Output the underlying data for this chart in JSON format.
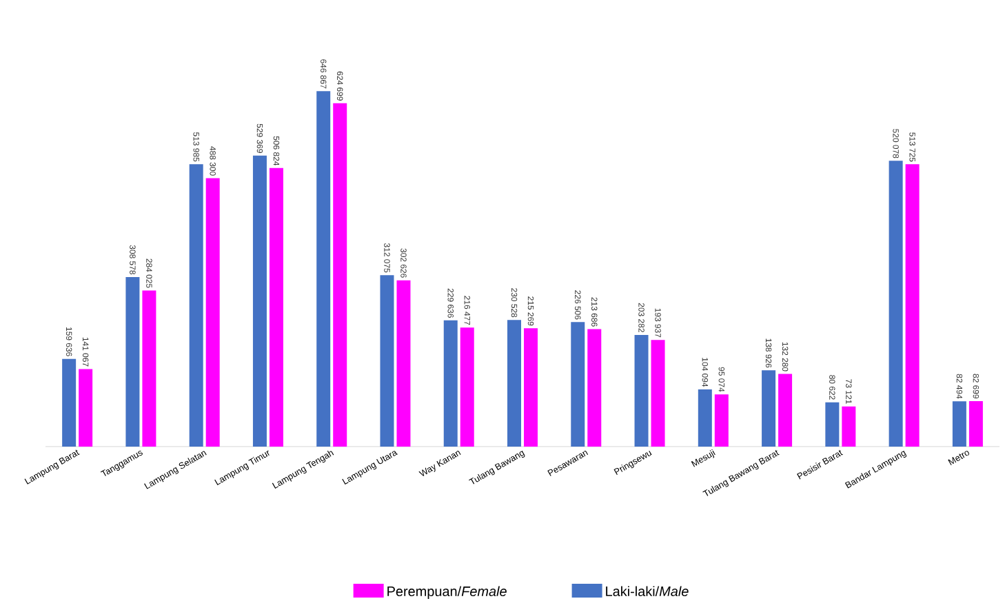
{
  "chart_data": {
    "type": "bar",
    "categories": [
      "Lampung Barat",
      "Tanggamus",
      "Lampung Selatan",
      "Lampung Timur",
      "Lampung Tengah",
      "Lampung Utara",
      "Way Kanan",
      "Tulang Bawang",
      "Pesawaran",
      "Pringsewu",
      "Mesuji",
      "Tulang Bawang Barat",
      "Pesisir Barat",
      "Bandar Lampung",
      "Metro"
    ],
    "series": [
      {
        "name": "Laki-laki/*Male*",
        "color": "#4472c4",
        "values": [
          159636,
          308578,
          513985,
          529369,
          646867,
          312075,
          229636,
          230528,
          226506,
          203282,
          104094,
          138926,
          80622,
          520078,
          82494
        ],
        "value_labels": [
          "159 636",
          "308 578",
          "513 985",
          "529 369",
          "646 867",
          "312 075",
          "229 636",
          "230 528",
          "226 506",
          "203 282",
          "104 094",
          "138 926",
          "80 622",
          "520 078",
          "82 494"
        ]
      },
      {
        "name": "Perempuan/*Female*",
        "color": "#ff00ff",
        "values": [
          141067,
          284025,
          488300,
          506824,
          624699,
          302626,
          216477,
          215269,
          213686,
          193937,
          95074,
          132280,
          73121,
          513725,
          82699
        ],
        "value_labels": [
          "141 067",
          "284 025",
          "488 300",
          "506 824",
          "624 699",
          "302 626",
          "216 477",
          "215 269",
          "213 686",
          "193 937",
          "95 074",
          "132 280",
          "73 121",
          "513 725",
          "82 699"
        ]
      }
    ],
    "legend": "bottom"
  }
}
